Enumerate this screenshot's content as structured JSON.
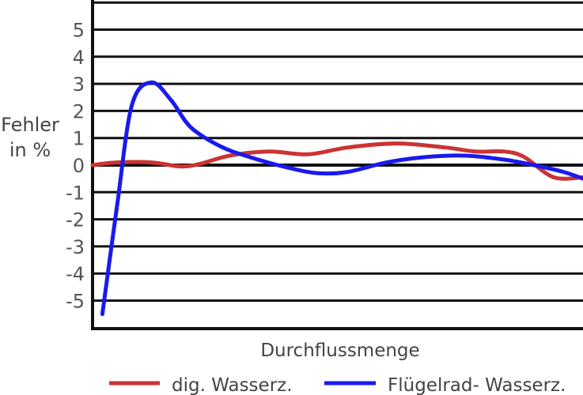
{
  "chart_data": {
    "type": "line",
    "title": "",
    "xlabel": "Durchflussmenge",
    "ylabel_line1": "Fehler",
    "ylabel_line2": "in %",
    "ylim": [
      -6,
      6
    ],
    "yticks": [
      "5",
      "4",
      "3",
      "2",
      "1",
      "0",
      "-1",
      "-2",
      "-3",
      "-4",
      "-5"
    ],
    "ytick_values": [
      5,
      4,
      3,
      2,
      1,
      0,
      -1,
      -2,
      -3,
      -4,
      -5
    ],
    "grid": true,
    "legend_position": "bottom",
    "series": [
      {
        "name": "dig. Wasserz.",
        "color": "#cc3333",
        "points": [
          [
            0,
            0.0
          ],
          [
            0.05,
            0.1
          ],
          [
            0.12,
            0.1
          ],
          [
            0.18,
            -0.05
          ],
          [
            0.22,
            0.05
          ],
          [
            0.28,
            0.35
          ],
          [
            0.36,
            0.5
          ],
          [
            0.44,
            0.4
          ],
          [
            0.52,
            0.65
          ],
          [
            0.62,
            0.8
          ],
          [
            0.72,
            0.65
          ],
          [
            0.78,
            0.5
          ],
          [
            0.84,
            0.5
          ],
          [
            0.88,
            0.3
          ],
          [
            0.94,
            -0.45
          ],
          [
            1.0,
            -0.45
          ]
        ]
      },
      {
        "name": "Flügelrad- Wasserz.",
        "color": "#1a1aee",
        "points": [
          [
            0.02,
            -5.5
          ],
          [
            0.05,
            -1.5
          ],
          [
            0.08,
            2.2
          ],
          [
            0.12,
            3.05
          ],
          [
            0.16,
            2.4
          ],
          [
            0.2,
            1.4
          ],
          [
            0.26,
            0.7
          ],
          [
            0.32,
            0.3
          ],
          [
            0.4,
            -0.1
          ],
          [
            0.46,
            -0.3
          ],
          [
            0.52,
            -0.25
          ],
          [
            0.6,
            0.1
          ],
          [
            0.68,
            0.3
          ],
          [
            0.76,
            0.35
          ],
          [
            0.84,
            0.2
          ],
          [
            0.9,
            0.0
          ],
          [
            0.96,
            -0.25
          ],
          [
            1.0,
            -0.5
          ]
        ]
      }
    ]
  }
}
